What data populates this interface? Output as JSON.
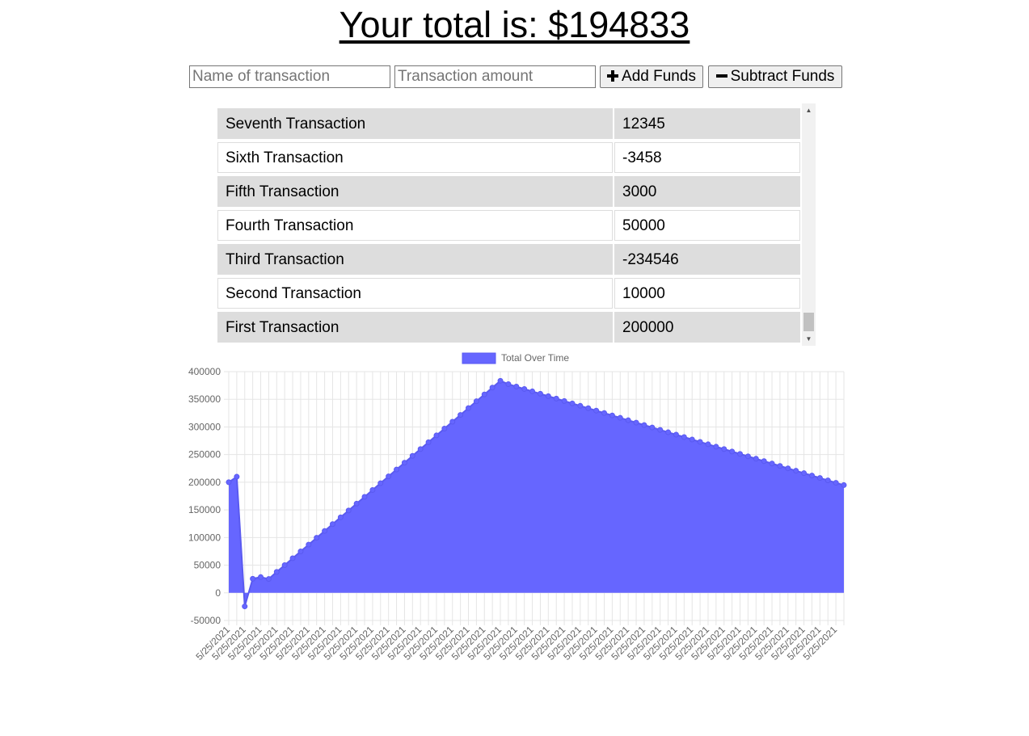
{
  "header": {
    "total_text": "Your total is: $194833"
  },
  "form": {
    "name_placeholder": "Name of transaction",
    "amount_placeholder": "Transaction amount",
    "add_label": "Add Funds",
    "subtract_label": "Subtract Funds",
    "add_icon": "plus-icon",
    "subtract_icon": "minus-icon"
  },
  "transactions": [
    {
      "name": "Seventh Transaction",
      "amount": "12345"
    },
    {
      "name": "Sixth Transaction",
      "amount": "-3458"
    },
    {
      "name": "Fifth Transaction",
      "amount": "3000"
    },
    {
      "name": "Fourth Transaction",
      "amount": "50000"
    },
    {
      "name": "Third Transaction",
      "amount": "-234546"
    },
    {
      "name": "Second Transaction",
      "amount": "10000"
    },
    {
      "name": "First Transaction",
      "amount": "200000"
    }
  ],
  "colors": {
    "series_fill": "#6666ff",
    "series_stroke": "#5a5af0",
    "grid": "#e5e5e5",
    "row_shaded": "#dddddd"
  },
  "chart_data": {
    "type": "area",
    "title": "",
    "legend": {
      "label": "Total Over Time",
      "placement": "top-center"
    },
    "grid": true,
    "ylim": [
      -50000,
      400000
    ],
    "yticks": [
      -50000,
      0,
      50000,
      100000,
      150000,
      200000,
      250000,
      300000,
      350000,
      400000
    ],
    "x_tick_label": "5/25/2021",
    "series": [
      {
        "name": "Total Over Time",
        "values": [
          200000,
          210000,
          -24546,
          25454,
          28454,
          25000,
          37795,
          50140,
          62485,
          74830,
          87175,
          99520,
          111865,
          124210,
          136555,
          148900,
          161245,
          173590,
          185935,
          198280,
          210625,
          222970,
          235315,
          247660,
          260005,
          272350,
          284695,
          297040,
          309385,
          321730,
          334075,
          346420,
          358765,
          371110,
          383455,
          377350,
          373000,
          368650,
          364300,
          359950,
          355600,
          351250,
          346900,
          342550,
          338200,
          333850,
          329500,
          325150,
          320800,
          316450,
          312100,
          307750,
          303400,
          299050,
          294700,
          290350,
          286000,
          281650,
          277300,
          272950,
          268600,
          264250,
          259900,
          255550,
          251200,
          246850,
          242500,
          238150,
          233800,
          229450,
          225100,
          220750,
          216400,
          212050,
          207700,
          203350,
          199000,
          194833
        ]
      }
    ]
  }
}
